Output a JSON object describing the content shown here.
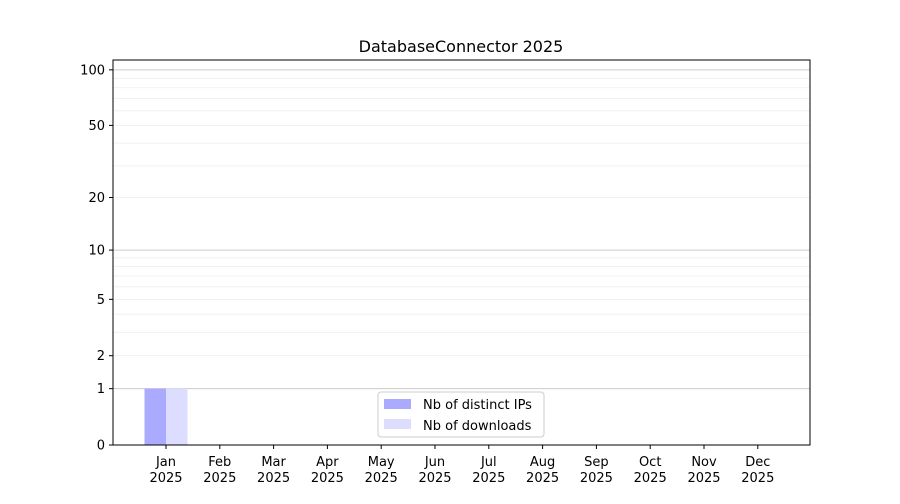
{
  "chart_data": {
    "type": "bar",
    "title": "DatabaseConnector 2025",
    "xlabel": "",
    "ylabel": "",
    "categories": [
      "Jan\n2025",
      "Feb\n2025",
      "Mar\n2025",
      "Apr\n2025",
      "May\n2025",
      "Jun\n2025",
      "Jul\n2025",
      "Aug\n2025",
      "Sep\n2025",
      "Oct\n2025",
      "Nov\n2025",
      "Dec\n2025"
    ],
    "series": [
      {
        "name": "Nb of distinct IPs",
        "color": "#aaaaff",
        "values": [
          1,
          0,
          0,
          0,
          0,
          0,
          0,
          0,
          0,
          0,
          0,
          0
        ]
      },
      {
        "name": "Nb of downloads",
        "color": "#ddddff",
        "values": [
          1,
          0,
          0,
          0,
          0,
          0,
          0,
          0,
          0,
          0,
          0,
          0
        ]
      }
    ],
    "yscale": "log(1+y)",
    "yticks": [
      0,
      1,
      2,
      5,
      10,
      20,
      50,
      100
    ],
    "ylim": [
      0,
      113
    ],
    "grid": true,
    "legend": "bottom-center"
  }
}
